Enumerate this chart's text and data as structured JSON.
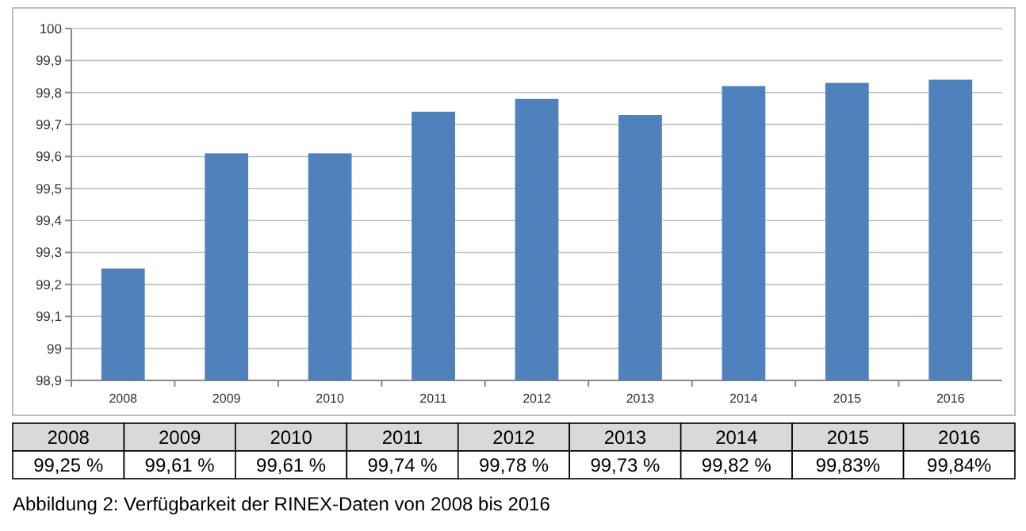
{
  "chart_data": {
    "type": "bar",
    "categories": [
      "2008",
      "2009",
      "2010",
      "2011",
      "2012",
      "2013",
      "2014",
      "2015",
      "2016"
    ],
    "values": [
      99.25,
      99.61,
      99.61,
      99.74,
      99.78,
      99.73,
      99.82,
      99.83,
      99.84
    ],
    "value_labels": [
      "99,25 %",
      "99,61 %",
      "99,61 %",
      "99,74 %",
      "99,78 %",
      "99,73 %",
      "99,82 %",
      "99,83%",
      "99,84%"
    ],
    "color": "#4f81bd",
    "ylim": [
      98.9,
      100
    ],
    "yticks": [
      {
        "value": 98.9,
        "label": "98,9"
      },
      99,
      {
        "value": 99.1,
        "label": "99,1"
      },
      {
        "value": 99.2,
        "label": "99,2"
      },
      {
        "value": 99.3,
        "label": "99,3"
      },
      {
        "value": 99.4,
        "label": "99,4"
      },
      {
        "value": 99.5,
        "label": "99,5"
      },
      {
        "value": 99.6,
        "label": "99,6"
      },
      {
        "value": 99.7,
        "label": "99,7"
      },
      {
        "value": 99.8,
        "label": "99,8"
      },
      {
        "value": 99.9,
        "label": "99,9"
      },
      100
    ],
    "grid": "y",
    "annotations": [
      "Abbildung 2: Verfügbarkeit der RINEX-Daten von 2008 bis 2016"
    ]
  }
}
